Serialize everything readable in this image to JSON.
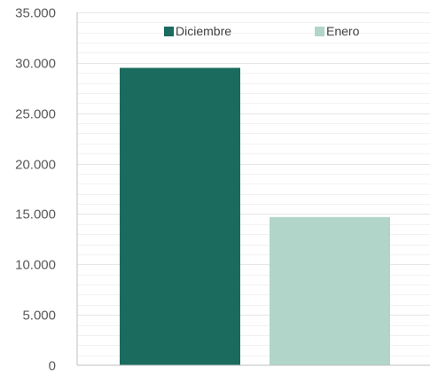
{
  "chart_data": {
    "type": "bar",
    "categories": [
      ""
    ],
    "series": [
      {
        "name": "Diciembre",
        "values": [
          29500
        ],
        "color": "#1b6b5f"
      },
      {
        "name": "Enero",
        "values": [
          14700
        ],
        "color": "#b1d5c8"
      }
    ],
    "ylim": [
      0,
      35000
    ],
    "yticks": [
      "0",
      "5.000",
      "10.000",
      "15.000",
      "20.000",
      "25.000",
      "30.000",
      "35.000"
    ],
    "grid": true,
    "legend": "top"
  }
}
